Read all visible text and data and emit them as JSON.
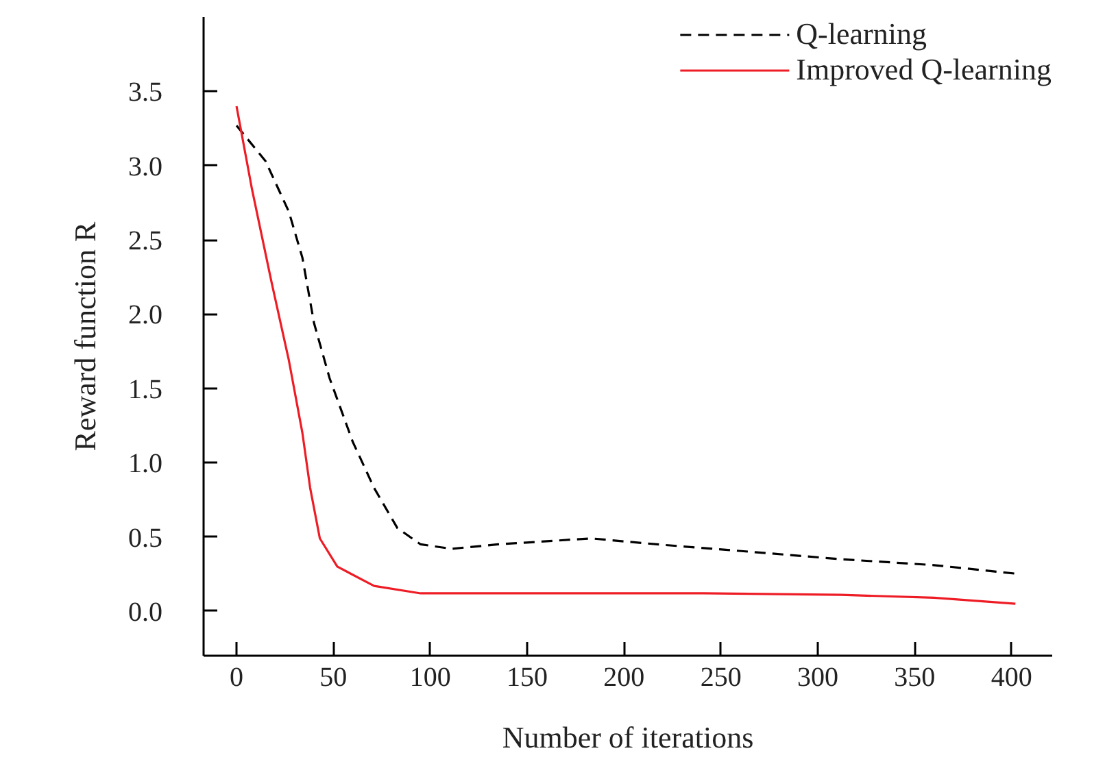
{
  "chart_data": {
    "type": "line",
    "xlabel": "Number of iterations",
    "ylabel": "Reward function R",
    "xlim": [
      -17,
      421
    ],
    "ylim": [
      -0.3,
      4.0
    ],
    "xticks": [
      0,
      50,
      100,
      150,
      200,
      250,
      300,
      350,
      400
    ],
    "yticks": [
      {
        "value": 0,
        "label": "0.0"
      },
      {
        "value": 0.5,
        "label": "0.5"
      },
      {
        "value": 1,
        "label": "1.0"
      },
      {
        "value": 1.5,
        "label": "1.5"
      },
      {
        "value": 2,
        "label": "2.0"
      },
      {
        "value": 2.5,
        "label": "2.5"
      },
      {
        "value": 3,
        "label": "3.0"
      },
      {
        "value": 3.5,
        "label": "3.5"
      }
    ],
    "grid": false,
    "legend": "top right",
    "marker": "none",
    "series": [
      {
        "name": "Q-learning",
        "color": "#000000",
        "line_style": "dashed",
        "x": [
          0,
          15,
          27,
          34,
          40,
          48,
          60,
          71,
          83,
          95,
          111,
          135,
          183,
          217,
          265,
          312,
          360,
          404
        ],
        "values": [
          3.27,
          3.03,
          2.69,
          2.38,
          1.94,
          1.57,
          1.14,
          0.83,
          0.56,
          0.45,
          0.42,
          0.45,
          0.49,
          0.45,
          0.4,
          0.35,
          0.31,
          0.25
        ]
      },
      {
        "name": "Improved Q-learning",
        "color": "#ee1c25",
        "line_style": "solid",
        "x": [
          0,
          8,
          18,
          27,
          34,
          38,
          43,
          52,
          71,
          95,
          194,
          241,
          312,
          360,
          402
        ],
        "values": [
          3.4,
          2.84,
          2.22,
          1.69,
          1.2,
          0.83,
          0.49,
          0.3,
          0.17,
          0.12,
          0.12,
          0.12,
          0.11,
          0.09,
          0.05
        ]
      }
    ]
  }
}
